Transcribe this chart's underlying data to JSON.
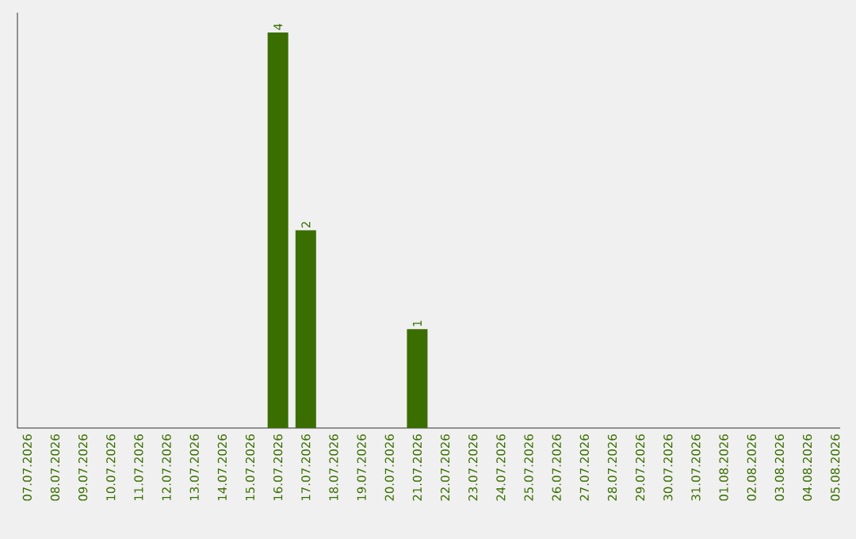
{
  "chart_data": {
    "type": "bar",
    "categories": [
      "07.07.2026",
      "08.07.2026",
      "09.07.2026",
      "10.07.2026",
      "11.07.2026",
      "12.07.2026",
      "13.07.2026",
      "14.07.2026",
      "15.07.2026",
      "16.07.2026",
      "17.07.2026",
      "18.07.2026",
      "19.07.2026",
      "20.07.2026",
      "21.07.2026",
      "22.07.2026",
      "23.07.2026",
      "24.07.2026",
      "25.07.2026",
      "26.07.2026",
      "27.07.2026",
      "28.07.2026",
      "29.07.2026",
      "30.07.2026",
      "31.07.2026",
      "01.08.2026",
      "02.08.2026",
      "03.08.2026",
      "04.08.2026",
      "05.08.2026"
    ],
    "values": [
      0,
      0,
      0,
      0,
      0,
      0,
      0,
      0,
      0,
      4,
      2,
      0,
      0,
      0,
      1,
      0,
      0,
      0,
      0,
      0,
      0,
      0,
      0,
      0,
      0,
      0,
      0,
      0,
      0,
      0
    ],
    "value_labels": [
      null,
      null,
      null,
      null,
      null,
      null,
      null,
      null,
      null,
      "4",
      "2",
      null,
      null,
      null,
      "1",
      null,
      null,
      null,
      null,
      null,
      null,
      null,
      null,
      null,
      null,
      null,
      null,
      null,
      null,
      null
    ],
    "color": "#3a6e00",
    "ylim": [
      0,
      4.2
    ],
    "tick_labels": "x"
  }
}
